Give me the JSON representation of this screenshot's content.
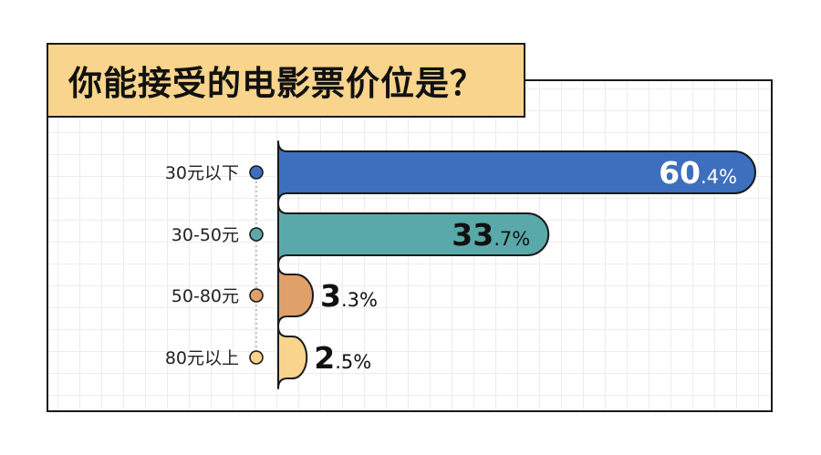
{
  "title": "你能接受的电影票价位是？",
  "colors": {
    "title_bg": "#f8d48c",
    "outline": "#1a1a1a"
  },
  "chart_data": {
    "type": "bar",
    "orientation": "horizontal",
    "categories": [
      "30元以下",
      "30-50元",
      "50-80元",
      "80元以上"
    ],
    "values": [
      60.4,
      33.7,
      3.3,
      2.5
    ],
    "unit": "%",
    "labels": [
      {
        "big": "60",
        "small": ".4%"
      },
      {
        "big": "33",
        "small": ".7%"
      },
      {
        "big": "3",
        "small": ".3%"
      },
      {
        "big": "2",
        "small": ".5%"
      }
    ],
    "colors": [
      "#3d6fbe",
      "#5aa9aa",
      "#e0a06a",
      "#f8d48c"
    ],
    "grid": true,
    "legend": "none"
  }
}
